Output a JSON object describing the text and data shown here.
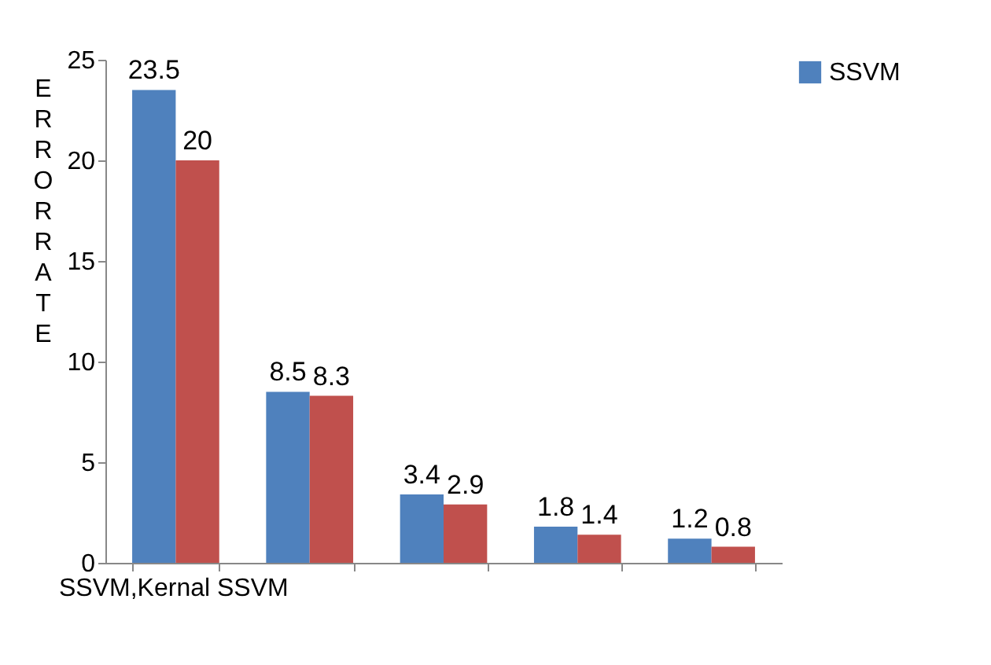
{
  "chart_data": {
    "type": "bar",
    "xlabel": "SSVM,Kernal SSVM",
    "ylabel": "ERROR RATE",
    "categories": [
      null,
      null,
      null,
      null,
      null
    ],
    "series": [
      {
        "name": "SSVM",
        "color": "#4f81bd",
        "values": [
          23.5,
          8.5,
          3.4,
          1.8,
          1.2
        ]
      },
      {
        "color": "#c0504d",
        "values": [
          20,
          8.3,
          2.9,
          1.4,
          0.8
        ]
      }
    ],
    "ylim": [
      0,
      25
    ],
    "yticks": [
      0,
      5,
      10,
      15,
      20,
      25
    ],
    "data_labels": true,
    "legend": "right"
  }
}
